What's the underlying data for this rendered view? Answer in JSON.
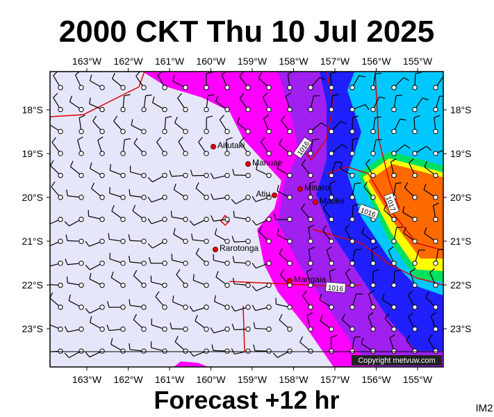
{
  "title": "2000 CKT Thu 10 Jul 2025",
  "lon_labels": [
    "163°W",
    "162°W",
    "161°W",
    "160°W",
    "159°W",
    "158°W",
    "157°W",
    "156°W",
    "155°W"
  ],
  "lat_labels": [
    "18°S",
    "19°S",
    "20°S",
    "21°S",
    "22°S",
    "23°S"
  ],
  "places": [
    "Aitutaki",
    "Manuae",
    "Atiu",
    "Mitiaro",
    "Mauke",
    "Rarotonga",
    "Mangaia"
  ],
  "isobar_labels": [
    "1016",
    "1016",
    "1017",
    "1016"
  ],
  "copyright": "Copyright metvuw.com",
  "footer": "Forecast +12 hr",
  "image_id": "IM2"
}
